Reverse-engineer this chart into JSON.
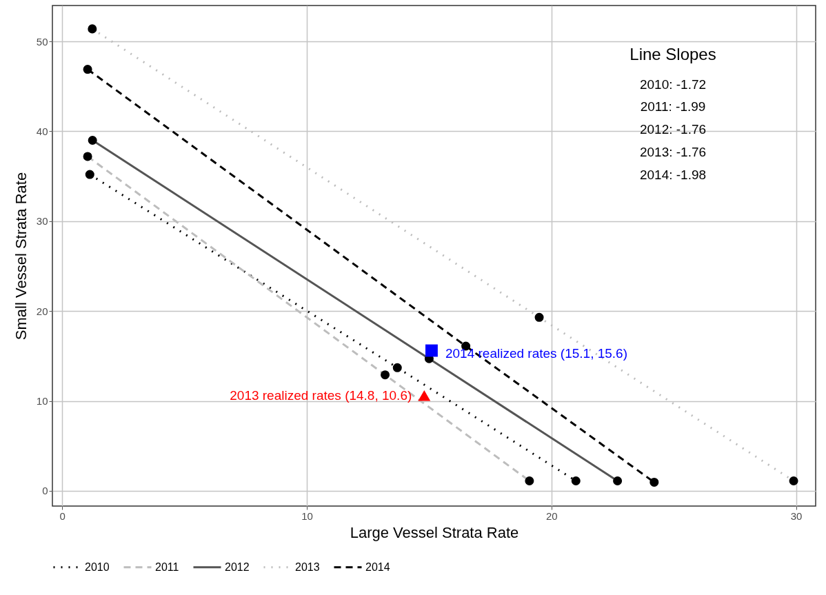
{
  "chart_data": {
    "type": "line",
    "xlabel": "Large Vessel Strata Rate",
    "ylabel": "Small Vessel Strata Rate",
    "xlim": [
      -0.4,
      30.8
    ],
    "ylim": [
      -1.7,
      54
    ],
    "xticks": [
      0,
      10,
      20,
      30
    ],
    "yticks": [
      0,
      10,
      20,
      30,
      40,
      50
    ],
    "grid": true,
    "legend": "bottom",
    "series": [
      {
        "name": "2010",
        "color": "#000000",
        "line_style": "dotted",
        "x": [
          1.13,
          13.7,
          21.0
        ],
        "values": [
          35.2,
          13.7,
          1.1
        ]
      },
      {
        "name": "2011",
        "color": "#bdbdbd",
        "line_style": "dashed",
        "x": [
          1.04,
          13.2,
          19.1
        ],
        "values": [
          37.2,
          12.9,
          1.1
        ]
      },
      {
        "name": "2012",
        "color": "#555555",
        "line_style": "solid",
        "x": [
          1.24,
          15.0,
          22.7
        ],
        "values": [
          39.0,
          14.7,
          1.1
        ]
      },
      {
        "name": "2013",
        "color": "#bdbdbd",
        "line_style": "dotted",
        "x": [
          1.23,
          19.5,
          29.9
        ],
        "values": [
          51.4,
          19.3,
          1.1
        ]
      },
      {
        "name": "2014",
        "color": "#000000",
        "line_style": "dashed",
        "x": [
          1.04,
          16.5,
          24.2
        ],
        "values": [
          46.9,
          16.1,
          0.95
        ]
      },
      {
        "type": "scatter",
        "color": "#000000",
        "marker": "circle",
        "x": [
          1.13,
          13.7,
          21.0,
          1.04,
          13.2,
          19.1,
          1.24,
          15.0,
          22.7,
          1.23,
          19.5,
          29.9,
          1.04,
          16.5,
          24.2
        ],
        "values": [
          35.2,
          13.7,
          1.1,
          37.2,
          12.9,
          1.1,
          39.0,
          14.7,
          1.1,
          51.4,
          19.3,
          1.1,
          46.9,
          16.1,
          0.95
        ]
      },
      {
        "type": "scatter",
        "color": "#ff0000",
        "marker": "triangle",
        "x": [
          14.8
        ],
        "values": [
          10.6
        ]
      },
      {
        "type": "scatter",
        "color": "#0000ff",
        "marker": "square",
        "x": [
          15.1
        ],
        "values": [
          15.6
        ]
      }
    ],
    "annotations": [
      {
        "text": "2013 realized rates (14.8, 10.6)",
        "x": 14.8,
        "y": 10.6
      },
      {
        "text": "2014 realized rates (15.1, 15.6)",
        "x": 15.1,
        "y": 15.6
      },
      "Line Slopes",
      "2010: -1.72",
      "2011: -1.99",
      "2012: -1.76",
      "2013: -1.76",
      "2014: -1.98"
    ]
  }
}
